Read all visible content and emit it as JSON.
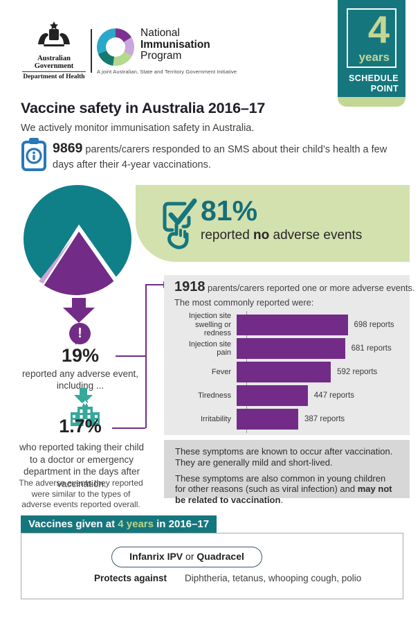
{
  "colors": {
    "teal": "#16767d",
    "pie_teal": "#0f7f88",
    "light_green": "#c3d795",
    "banner_green": "#d3e1af",
    "purple": "#722c87",
    "light_purple": "#c9a5d6",
    "clipboard_blue": "#2878ba",
    "aqua": "#38a79c",
    "panel_gray": "#e9e9ea",
    "symptom_gray": "#d7d7d8"
  },
  "header": {
    "coat_of_arms": {
      "line1": "Australian Government",
      "line2": "Department of Health"
    },
    "nip": {
      "word1": "National",
      "word2": "Immunisation",
      "word3": "Program",
      "tagline": "A joint Australian, State and Territory Government Initiative"
    },
    "badge": {
      "number": "4",
      "unit": "years",
      "label1": "SCHEDULE",
      "label2": "POINT"
    }
  },
  "intro": {
    "title": "Vaccine safety in Australia 2016–17",
    "subtitle": "We actively monitor immunisation safety in Australia.",
    "sms_number": "9869",
    "sms_rest": " parents/carers responded to an SMS about their child’s health a few days after their 4-year vaccinations."
  },
  "highlight": {
    "percent": "81%",
    "pre": "reported ",
    "bold": "no",
    "post": " adverse events"
  },
  "left_stats": {
    "any": {
      "percent": "19%",
      "text": "reported any adverse event, including ..."
    },
    "doctor": {
      "percent": "1.7%",
      "text": "who reported taking their child to a doctor or emergency department in the days after vaccination.",
      "note": "The adverse events they reported were similar to the types of adverse events reported overall."
    }
  },
  "chart_data": {
    "type": "bar",
    "orientation": "horizontal",
    "title_number": "1918",
    "title_rest": " parents/carers reported one or more adverse events.",
    "subtitle": "The most commonly reported were:",
    "categories": [
      "Injection site swelling or redness",
      "Injection site pain",
      "Fever",
      "Tiredness",
      "Irritability"
    ],
    "values": [
      698,
      681,
      592,
      447,
      387
    ],
    "value_suffix": " reports",
    "bar_color": "#722c87",
    "xlim": [
      0,
      750
    ],
    "grid": false,
    "legend": "none",
    "pie_no_events_pct": 81,
    "pie_any_event_pct": 19,
    "doctor_visit_pct": 1.7
  },
  "symptoms": {
    "p1": "These symptoms are known to occur after vaccination. They are generally mild and short-lived.",
    "p2_pre": "These symptoms are also common in young children for other reasons (such as viral infection) and ",
    "p2_bold": "may not be related to vaccination",
    "p2_post": "."
  },
  "vaccines": {
    "header_pre": "Vaccines given at ",
    "header_highlight": "4 years",
    "header_post": " in 2016–17",
    "pill_bold1": "Infanrix IPV",
    "pill_mid": " or ",
    "pill_bold2": "Quadracel",
    "protects_label": "Protects against",
    "protects_value": "Diphtheria, tetanus, whooping cough, polio"
  },
  "icons": {
    "coat_of_arms": "australian-coat-of-arms",
    "nip_ring": "nip-ring-logo",
    "clipboard": "clipboard-info-icon",
    "checkbox_hand": "checkbox-hand-icon",
    "exclamation": "exclamation-bubble-icon",
    "hospital": "hospital-icon",
    "arrows": "down-arrow-icon"
  }
}
